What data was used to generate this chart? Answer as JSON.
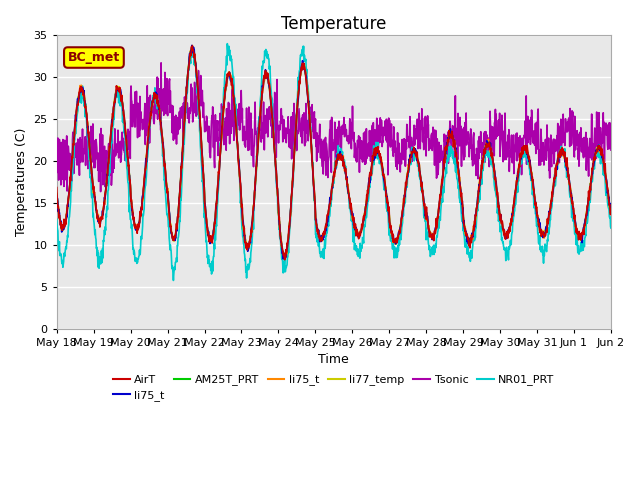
{
  "title": "Temperature",
  "ylabel": "Temperatures (C)",
  "xlabel": "Time",
  "ylim": [
    0,
    35
  ],
  "yticks": [
    0,
    5,
    10,
    15,
    20,
    25,
    30,
    35
  ],
  "background_color": "#e8e8e8",
  "figure_color": "#ffffff",
  "annotation_text": "BC_met",
  "annotation_bg": "#ffff00",
  "annotation_border": "#8b0000",
  "color_AirT": "#cc0000",
  "color_li75_t_blue": "#0000cc",
  "color_AM25T_PRT": "#00cc00",
  "color_li75_t_orange": "#ff8800",
  "color_li77_temp": "#cccc00",
  "color_Tsonic": "#aa00aa",
  "color_NR01_PRT": "#00cccc",
  "x_tick_labels": [
    "May 18",
    "May 19",
    "May 20",
    "May 21",
    "May 22",
    "May 23",
    "May 24",
    "May 25",
    "May 26",
    "May 27",
    "May 28",
    "May 29",
    "May 30",
    "May 31",
    "Jun 1",
    "Jun 2"
  ],
  "num_days": 15,
  "seed": 42,
  "line_width": 1.2
}
